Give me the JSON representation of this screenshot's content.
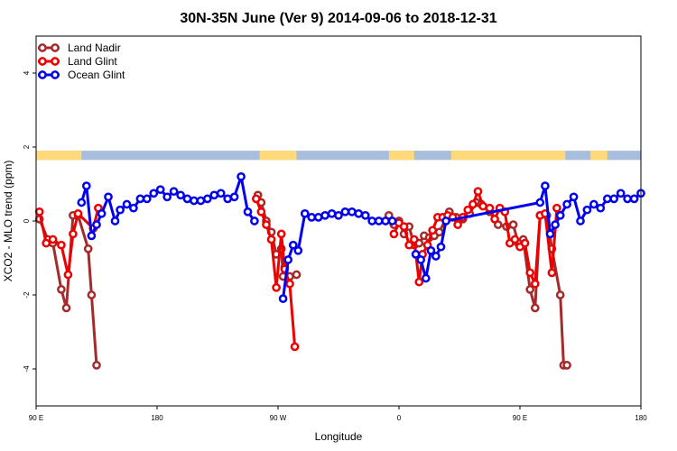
{
  "chart_data": {
    "type": "line",
    "title": "30N-35N June (Ver 9)   2014-09-06 to 2018-12-31",
    "xlabel": "Longitude",
    "ylabel": "XCO2 - MLO trend (ppm)",
    "xlim": [
      0,
      360
    ],
    "ylim": [
      -5,
      5
    ],
    "x_ticks": [
      {
        "x": 0,
        "label": "90 E"
      },
      {
        "x": 72,
        "label": "180"
      },
      {
        "x": 144,
        "label": "90 W"
      },
      {
        "x": 216,
        "label": "0"
      },
      {
        "x": 288,
        "label": "90 E"
      },
      {
        "x": 360,
        "label": "180"
      }
    ],
    "y_ticks": [
      -4,
      -2,
      0,
      2,
      4
    ],
    "legend": {
      "position": "top-left"
    },
    "land_ocean_band": {
      "y_range": [
        1.65,
        1.9
      ],
      "land_color": "#FFD97A",
      "ocean_color": "#A8BEDC",
      "land_ranges": [
        [
          0,
          27
        ],
        [
          133,
          155
        ],
        [
          210,
          225
        ],
        [
          247,
          315
        ],
        [
          330,
          340
        ]
      ]
    },
    "series": [
      {
        "name": "Land Nadir",
        "color": "#A52A2A",
        "x": [
          2,
          7,
          10,
          15,
          18,
          22,
          25,
          31,
          33,
          36
        ],
        "y": [
          0.05,
          -0.5,
          -0.6,
          -1.85,
          -2.35,
          0.15,
          0.15,
          -0.75,
          -2.0,
          -3.9
        ],
        "x2": [
          132,
          134,
          137,
          140,
          143,
          146,
          147,
          148,
          151,
          155
        ],
        "y2": [
          0.7,
          0.5,
          0.0,
          -0.3,
          -0.9,
          -0.75,
          -1.5,
          -1.25,
          -1.5,
          -1.45
        ],
        "x3": [
          210,
          213,
          216,
          219,
          222,
          225,
          228,
          231,
          234,
          237,
          240,
          246,
          250,
          254,
          258,
          262,
          265,
          270,
          275,
          280,
          284,
          287,
          290,
          294,
          297,
          300,
          304,
          307,
          312,
          314,
          316
        ],
        "y3": [
          0.15,
          -0.1,
          0.0,
          -0.35,
          -0.15,
          -0.65,
          -0.6,
          -0.4,
          -0.45,
          -0.4,
          -0.3,
          0.25,
          0.1,
          0.05,
          0.2,
          0.5,
          0.45,
          0.25,
          -0.1,
          -0.15,
          -0.1,
          -0.6,
          -0.5,
          -1.85,
          -2.35,
          0.15,
          0.15,
          -0.75,
          -2.0,
          -3.9,
          -3.9
        ]
      },
      {
        "name": "Land Glint",
        "color": "#EE0000",
        "x": [
          2,
          6,
          10,
          15,
          19,
          22,
          25,
          34,
          37
        ],
        "y": [
          0.25,
          -0.6,
          -0.5,
          -0.65,
          -1.45,
          -0.35,
          0.2,
          -0.2,
          0.35
        ],
        "x2": [
          131,
          134,
          137,
          140,
          143,
          146,
          148,
          151,
          154
        ],
        "y2": [
          0.6,
          0.25,
          -0.1,
          -0.5,
          -1.8,
          -0.35,
          -1.3,
          -1.7,
          -3.4
        ],
        "x3": [
          213,
          216,
          219,
          222,
          225,
          228,
          230,
          233,
          236,
          239,
          242,
          245,
          248,
          251,
          254,
          257,
          260,
          263,
          266,
          270,
          273,
          276,
          279,
          282,
          285,
          288,
          291,
          294,
          297,
          300,
          303,
          307,
          310
        ],
        "y3": [
          -0.35,
          -0.05,
          -0.15,
          -0.65,
          -0.5,
          -1.65,
          -0.9,
          -0.65,
          -0.25,
          0.1,
          0.1,
          0.15,
          0.1,
          -0.1,
          0.1,
          0.3,
          0.45,
          0.8,
          0.4,
          0.35,
          0.05,
          0.35,
          0.25,
          -0.6,
          -0.5,
          -0.7,
          -0.6,
          -1.4,
          -1.7,
          0.15,
          0.2,
          -1.4,
          0.35
        ]
      },
      {
        "name": "Ocean Glint",
        "color": "#0000EE",
        "x": [
          27,
          30,
          33,
          36,
          39,
          43,
          47,
          50,
          54,
          58,
          62,
          66,
          70,
          74,
          78,
          82,
          86,
          90,
          94,
          98,
          102,
          106,
          110,
          114,
          118,
          122,
          126,
          130
        ],
        "y": [
          0.5,
          0.95,
          -0.4,
          -0.1,
          0.2,
          0.65,
          0.0,
          0.3,
          0.45,
          0.35,
          0.6,
          0.6,
          0.75,
          0.85,
          0.65,
          0.8,
          0.7,
          0.6,
          0.55,
          0.55,
          0.6,
          0.7,
          0.75,
          0.6,
          0.65,
          1.2,
          0.25,
          0.0
        ],
        "x2": [
          147,
          150,
          153,
          156,
          160,
          164,
          168,
          172,
          176,
          180,
          184,
          188,
          192,
          196,
          200,
          204,
          208,
          212
        ],
        "y2": [
          -2.1,
          -1.05,
          -0.65,
          -0.8,
          0.2,
          0.1,
          0.1,
          0.15,
          0.2,
          0.15,
          0.25,
          0.25,
          0.2,
          0.15,
          0.0,
          0.0,
          0.0,
          0.0
        ],
        "x3": [
          226,
          229,
          232,
          235,
          238,
          241,
          244,
          300,
          303,
          306,
          309,
          312,
          316,
          320,
          324,
          328,
          332,
          336,
          340,
          344,
          348,
          352,
          356,
          360
        ],
        "y3": [
          -0.9,
          -1.05,
          -1.55,
          -0.8,
          -0.95,
          -0.7,
          0.0,
          0.5,
          0.95,
          -0.35,
          -0.1,
          0.15,
          0.45,
          0.65,
          0.0,
          0.3,
          0.45,
          0.35,
          0.6,
          0.6,
          0.75,
          0.6,
          0.6,
          0.75
        ]
      }
    ]
  }
}
